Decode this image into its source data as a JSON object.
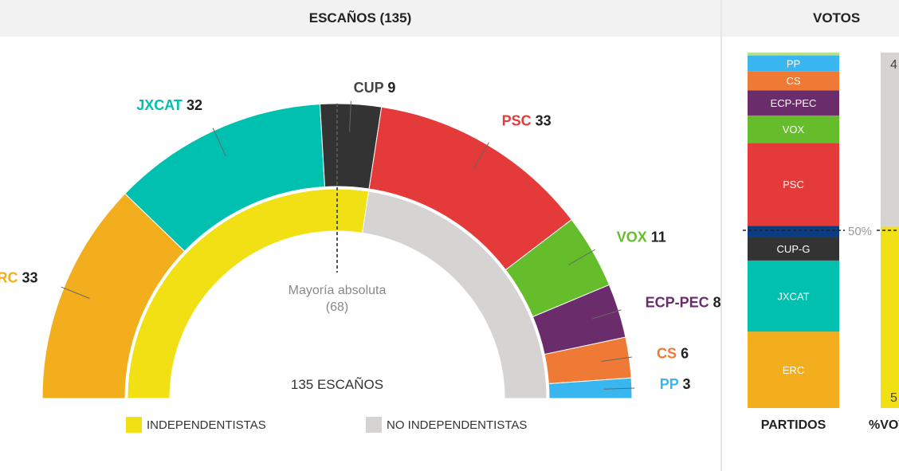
{
  "header": {
    "seats_title": "ESCAÑOS (135)",
    "votes_title": "VOTOS"
  },
  "chart_data": [
    {
      "type": "hemicycle",
      "title": "ESCAÑOS (135)",
      "total_label": "135 ESCAÑOS",
      "majority_label": "Mayoría absoluta",
      "majority_value": "(68)",
      "parties": [
        {
          "name": "ERC",
          "seats": 33,
          "color": "#f2ae1c"
        },
        {
          "name": "JXCAT",
          "seats": 32,
          "color": "#00c1b0"
        },
        {
          "name": "CUP",
          "seats": 9,
          "color": "#333333"
        },
        {
          "name": "PSC",
          "seats": 33,
          "color": "#e53a3a"
        },
        {
          "name": "VOX",
          "seats": 11,
          "color": "#66bd2b"
        },
        {
          "name": "ECP-PEC",
          "seats": 8,
          "color": "#6b2c6b"
        },
        {
          "name": "CS",
          "seats": 6,
          "color": "#ef7a35"
        },
        {
          "name": "PP",
          "seats": 3,
          "color": "#39b6ef"
        }
      ],
      "blocs": [
        {
          "name": "INDEPENDENTISTAS",
          "seats": 74,
          "color": "#f0e014"
        },
        {
          "name": "NO INDEPENDENTISTAS",
          "seats": 61,
          "color": "#d6d3d3"
        }
      ]
    },
    {
      "type": "stacked-bar",
      "title": "VOTOS",
      "reference_label": "50%",
      "bars": [
        {
          "label": "PARTIDOS",
          "segments": [
            {
              "name": "ERC",
              "value": 21.5,
              "color": "#f2ae1c"
            },
            {
              "name": "JXCAT",
              "value": 20.0,
              "color": "#00c1b0"
            },
            {
              "name": "CUP-G",
              "value": 6.7,
              "color": "#333333"
            },
            {
              "name": "",
              "value": 3.1,
              "color": "#0c3d80"
            },
            {
              "name": "PSC",
              "value": 23.3,
              "color": "#e53a3a"
            },
            {
              "name": "VOX",
              "value": 7.7,
              "color": "#66bd2b"
            },
            {
              "name": "ECP-PEC",
              "value": 7.1,
              "color": "#6b2c6b"
            },
            {
              "name": "CS",
              "value": 5.4,
              "color": "#ef7a35"
            },
            {
              "name": "PP",
              "value": 4.4,
              "color": "#39b6ef"
            },
            {
              "name": "",
              "value": 0.8,
              "color": "#b7e08a"
            }
          ]
        },
        {
          "label": "%VOTOS",
          "segments": [
            {
              "name": "5",
              "value": 51,
              "color": "#f0e014"
            },
            {
              "name": "4",
              "value": 49,
              "color": "#d6d3d3"
            }
          ]
        }
      ]
    }
  ]
}
